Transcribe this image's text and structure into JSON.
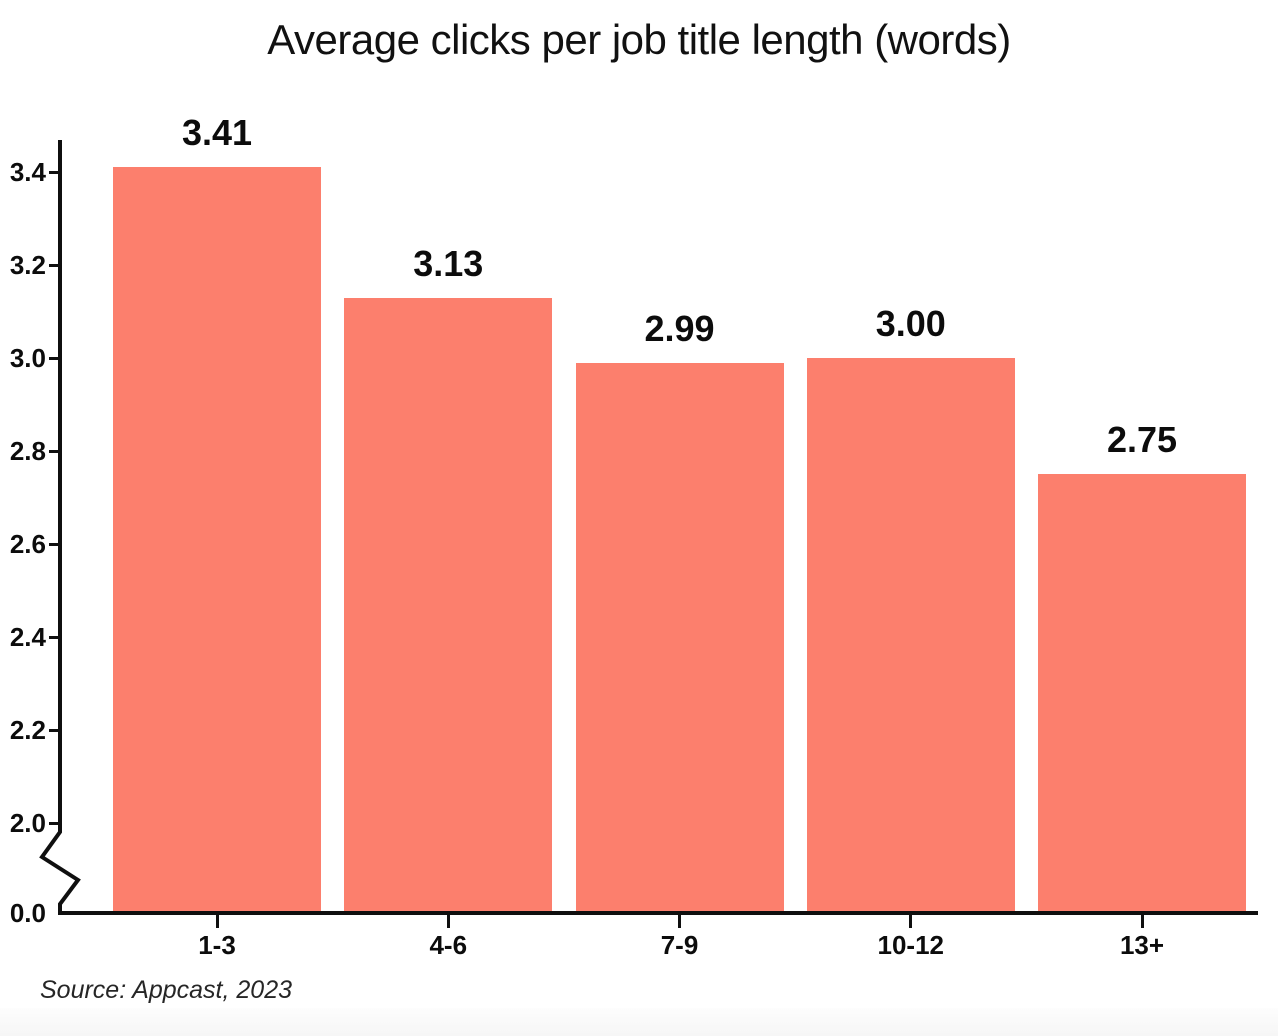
{
  "chart_data": {
    "type": "bar",
    "title": "Average clicks per job title length (words)",
    "categories": [
      "1-3",
      "4-6",
      "7-9",
      "10-12",
      "13+"
    ],
    "values": [
      3.41,
      3.13,
      2.99,
      3.0,
      2.75
    ],
    "value_labels": [
      "3.41",
      "3.13",
      "2.99",
      "3.00",
      "2.75"
    ],
    "xlabel": "",
    "ylabel": "",
    "y_axis": {
      "tick_values": [
        3.4,
        3.2,
        3.0,
        2.8,
        2.6,
        2.4,
        2.2,
        2.0,
        0.0
      ],
      "tick_labels": [
        "3.4",
        "3.2",
        "3.0",
        "2.8",
        "2.6",
        "2.4",
        "2.2",
        "2.0",
        "0.0"
      ],
      "axis_break_between": [
        0.0,
        2.0
      ],
      "display_range_above_break": [
        2.0,
        3.45
      ]
    },
    "grid": false,
    "legend": "none",
    "bar_color": "#FC7F6D",
    "axis_color": "#0F0F0F",
    "label_color": "#0C0C0C"
  },
  "source_note": "Source: Appcast, 2023"
}
